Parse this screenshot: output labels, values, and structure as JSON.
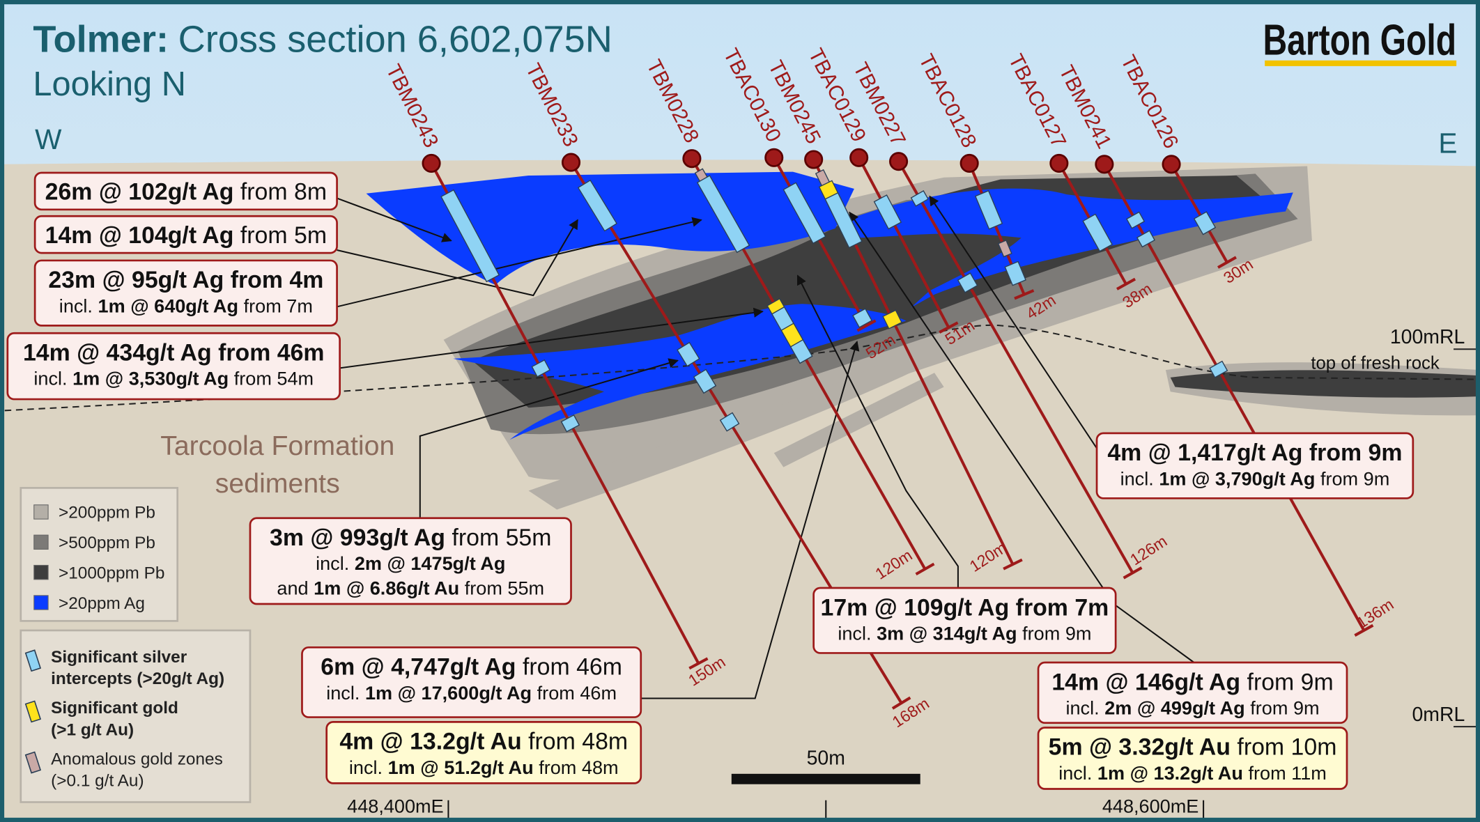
{
  "header": {
    "title_bold": "Tolmer:",
    "title": "Cross section 6,602,075N",
    "subtitle": "Looking N",
    "brand": "Barton Gold"
  },
  "directions": {
    "west": "W",
    "east": "E"
  },
  "drillholes": [
    {
      "name": "TBM0243",
      "depth_label": "150m"
    },
    {
      "name": "TBM0233",
      "depth_label": "168m"
    },
    {
      "name": "TBM0228",
      "depth_label": "120m"
    },
    {
      "name": "TBAC0130",
      "depth_label": "52m"
    },
    {
      "name": "TBM0245",
      "depth_label": "120m"
    },
    {
      "name": "TBAC0129",
      "depth_label": "51m"
    },
    {
      "name": "TBM0227",
      "depth_label": "126m"
    },
    {
      "name": "TBAC0128",
      "depth_label": "42m"
    },
    {
      "name": "TBAC0127",
      "depth_label": "38m"
    },
    {
      "name": "TBM0241",
      "depth_label": "136m"
    },
    {
      "name": "TBAC0126",
      "depth_label": "30m"
    }
  ],
  "intercepts": [
    {
      "fill": "#fbeeec",
      "lines": [
        [
          {
            "text": "26m @ 102g/t Ag",
            "bold": true
          },
          {
            "text": "from 8m",
            "bold": false
          }
        ]
      ]
    },
    {
      "fill": "#fbeeec",
      "lines": [
        [
          {
            "text": "14m @ 104g/t Ag",
            "bold": true
          },
          {
            "text": "from 5m",
            "bold": false
          }
        ]
      ]
    },
    {
      "fill": "#fbeeec",
      "lines": [
        [
          {
            "text": "23m @ 95g/t Ag from 4m",
            "bold": true
          }
        ],
        [
          {
            "text": "incl.",
            "bold": false
          },
          {
            "text": "1m @ 640g/t Ag",
            "bold": true
          },
          {
            "text": "from 7m",
            "bold": false
          }
        ]
      ]
    },
    {
      "fill": "#fbeeec",
      "lines": [
        [
          {
            "text": "14m @ 434g/t Ag from 46m",
            "bold": true
          }
        ],
        [
          {
            "text": "incl.",
            "bold": false
          },
          {
            "text": "1m @ 3,530g/t Ag",
            "bold": true
          },
          {
            "text": "from 54m",
            "bold": false
          }
        ]
      ]
    },
    {
      "fill": "#fbeeec",
      "lines": [
        [
          {
            "text": "3m @ 993g/t Ag",
            "bold": true
          },
          {
            "text": "from 55m",
            "bold": false
          }
        ],
        [
          {
            "text": "incl.",
            "bold": false
          },
          {
            "text": "2m @ 1475g/t Ag",
            "bold": true
          }
        ],
        [
          {
            "text": "and",
            "bold": false
          },
          {
            "text": "1m @ 6.86g/t Au",
            "bold": true
          },
          {
            "text": "from 55m",
            "bold": false
          }
        ]
      ]
    },
    {
      "fill": "#fbeeec",
      "lines": [
        [
          {
            "text": "17m @ 109g/t Ag from 7m",
            "bold": true
          }
        ],
        [
          {
            "text": "incl.",
            "bold": false
          },
          {
            "text": "3m @ 314g/t Ag",
            "bold": true
          },
          {
            "text": "from 9m",
            "bold": false
          }
        ]
      ]
    },
    {
      "fill": "#fbeeec",
      "lines": [
        [
          {
            "text": "4m @ 1,417g/t Ag from 9m",
            "bold": true
          }
        ],
        [
          {
            "text": "incl.",
            "bold": false
          },
          {
            "text": "1m @ 3,790g/t Ag",
            "bold": true
          },
          {
            "text": "from 9m",
            "bold": false
          }
        ]
      ]
    },
    {
      "fill": "#fbeeec",
      "lines": [
        [
          {
            "text": "6m @ 4,747g/t Ag",
            "bold": true
          },
          {
            "text": "from 46m",
            "bold": false
          }
        ],
        [
          {
            "text": "incl.",
            "bold": false
          },
          {
            "text": "1m @ 17,600g/t Ag",
            "bold": true
          },
          {
            "text": "from 46m",
            "bold": false
          }
        ]
      ]
    },
    {
      "fill": "#fffbd2",
      "lines": [
        [
          {
            "text": "4m @ 13.2g/t Au",
            "bold": true
          },
          {
            "text": "from 48m",
            "bold": false
          }
        ],
        [
          {
            "text": "incl.",
            "bold": false
          },
          {
            "text": "1m @ 51.2g/t Au",
            "bold": true
          },
          {
            "text": "from 48m",
            "bold": false
          }
        ]
      ]
    },
    {
      "fill": "#fbeeec",
      "lines": [
        [
          {
            "text": "14m @ 146g/t Ag",
            "bold": true
          },
          {
            "text": "from 9m",
            "bold": false
          }
        ],
        [
          {
            "text": "incl.",
            "bold": false
          },
          {
            "text": "2m @ 499g/t Ag",
            "bold": true
          },
          {
            "text": "from 9m",
            "bold": false
          }
        ]
      ]
    },
    {
      "fill": "#fffbd2",
      "lines": [
        [
          {
            "text": "5m @ 3.32g/t Au",
            "bold": true
          },
          {
            "text": "from 10m",
            "bold": false
          }
        ],
        [
          {
            "text": "incl.",
            "bold": false
          },
          {
            "text": "1m @ 13.2g/t Au",
            "bold": true
          },
          {
            "text": "from 11m",
            "bold": false
          }
        ]
      ]
    }
  ],
  "annotations": {
    "formation": [
      "Tarcoola Formation",
      "sediments"
    ],
    "fresh_rock": "top of fresh rock",
    "rl_100": "100mRL",
    "rl_0": "0mRL",
    "scale": "50m",
    "easting_1": "448,400mE",
    "easting_2": "448,600mE"
  },
  "legend": {
    "zones": [
      {
        "label": ">200ppm Pb",
        "color": "#b4afa7"
      },
      {
        "label": ">500ppm Pb",
        "color": "#7c7a77"
      },
      {
        "label": ">1000ppm Pb",
        "color": "#3e3e3e"
      },
      {
        "label": ">20ppm Ag",
        "color": "#0a3cff"
      }
    ],
    "symbols": [
      {
        "lines": [
          "Significant silver",
          "intercepts (>20g/t Ag)"
        ],
        "color": "#8fd3f4",
        "bold": true
      },
      {
        "lines": [
          "Significant gold",
          "(>1 g/t Au)"
        ],
        "color": "#ffe21c",
        "bold": true
      },
      {
        "lines": [
          "Anomalous gold zones",
          "(>0.1 g/t Au)"
        ],
        "color": "#c9a9a6",
        "bold": false
      }
    ]
  }
}
